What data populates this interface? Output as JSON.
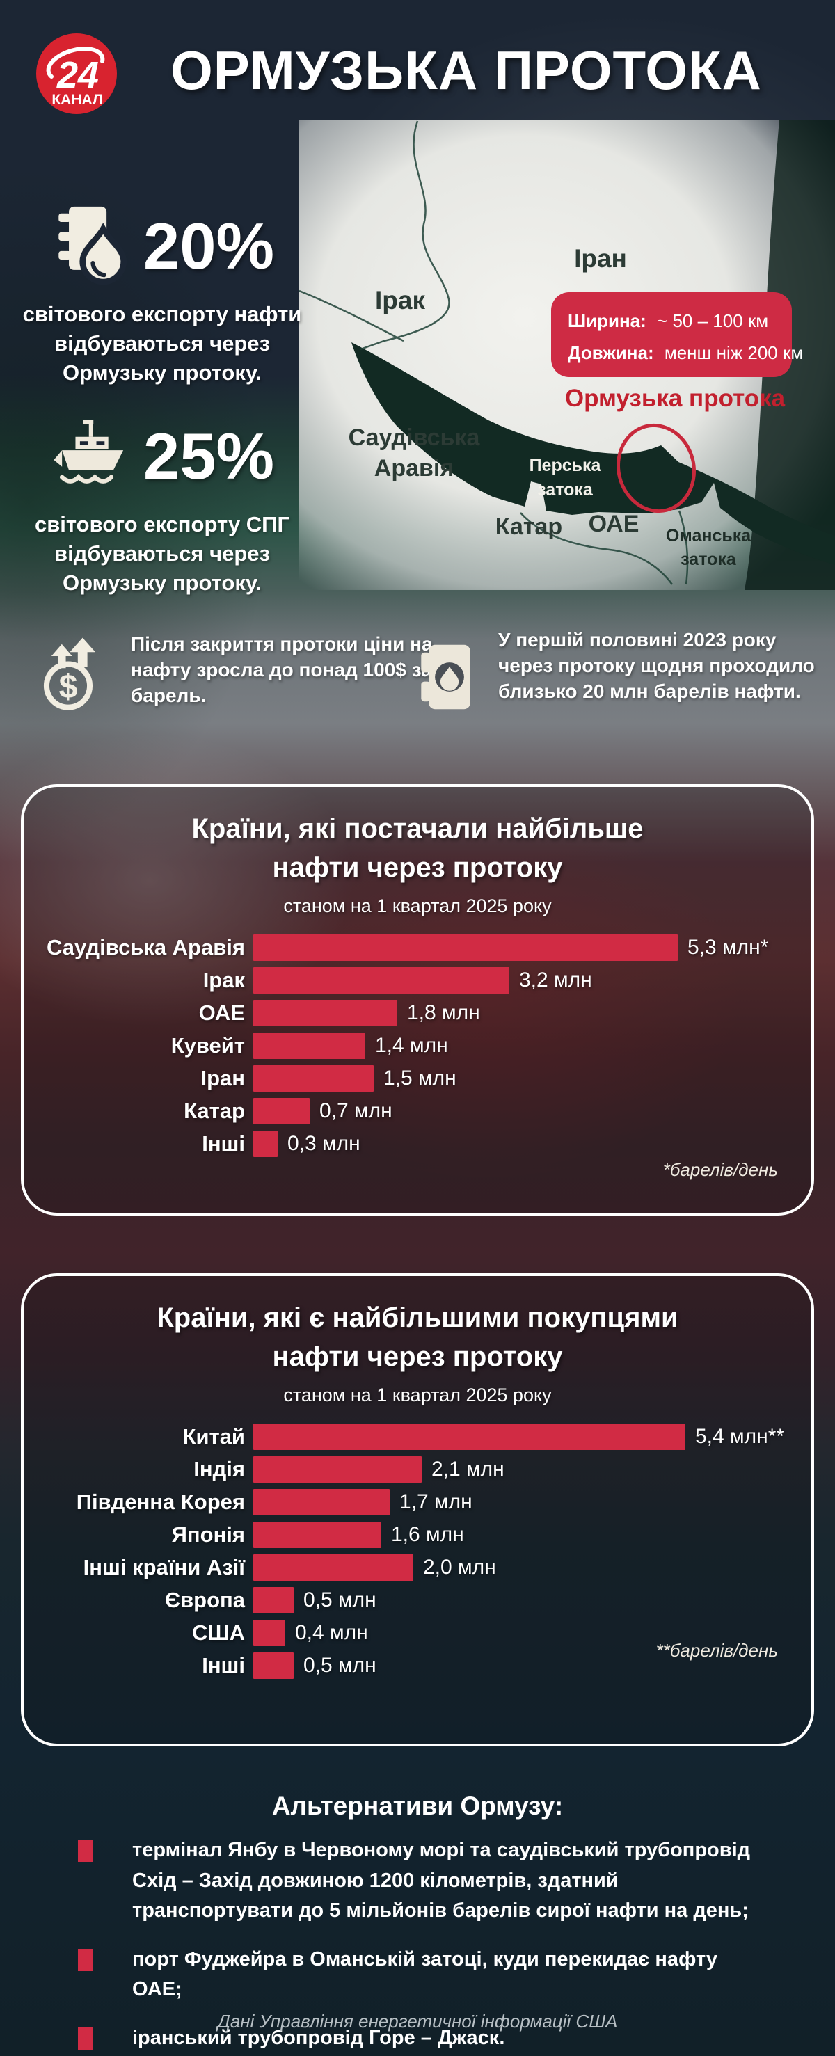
{
  "header": {
    "logo": {
      "number": "24",
      "word": "КАНАЛ"
    },
    "title": "ОРМУЗЬКА ПРОТОКА"
  },
  "map": {
    "labels": {
      "iran": "Іран",
      "iraq": "Ірак",
      "saudi_line1": "Саудівська",
      "saudi_line2": "Аравія",
      "qatar": "Катар",
      "uae": "ОАЕ",
      "persian_gulf_line1": "Перська",
      "persian_gulf_line2": "затока",
      "oman_gulf_line1": "Оманська",
      "oman_gulf_line2": "затока"
    },
    "badge": {
      "width_label": "Ширина:",
      "width_value": "~ 50 – 100 км",
      "length_label": "Довжина:",
      "length_value": "менш ніж 200 км"
    },
    "strait_label": "Ормузька протока"
  },
  "stats": [
    {
      "icon": "oil-barrel-drop",
      "value": "20%",
      "text": "світового експорту нафти відбуваються через Ормузьку протоку."
    },
    {
      "icon": "cargo-ship",
      "value": "25%",
      "text": "світового експорту СПГ відбуваються через Ормузьку протоку."
    }
  ],
  "facts": [
    {
      "icon": "price-rise-dollar",
      "text": "Після закриття протоки ціни на нафту зросла до понад 100$ за барель."
    },
    {
      "icon": "oil-barrel",
      "text": "У першій половині 2023 року через протоку щодня проходило близько 20 млн барелів нафти."
    }
  ],
  "chart_data": [
    {
      "type": "bar",
      "orientation": "horizontal",
      "title": "Країни, які постачали найбільше нафти через протоку",
      "subtitle": "станом на 1 квартал 2025 року",
      "categories": [
        "Саудівська Аравія",
        "Ірак",
        "ОАЕ",
        "Кувейт",
        "Іран",
        "Катар",
        "Інші"
      ],
      "values": [
        5.3,
        3.2,
        1.8,
        1.4,
        1.5,
        0.7,
        0.3
      ],
      "value_labels": [
        "5,3 млн*",
        "3,2 млн",
        "1,8 млн",
        "1,4 млн",
        "1,5 млн",
        "0,7 млн",
        "0,3 млн"
      ],
      "unit": "млн барелів/день",
      "footnote": "*барелів/день",
      "xlim": [
        0,
        5.5
      ],
      "grid": false,
      "legend": false
    },
    {
      "type": "bar",
      "orientation": "horizontal",
      "title": "Країни, які є найбільшими покупцями нафти через протоку",
      "subtitle": "станом на 1 квартал 2025 року",
      "categories": [
        "Китай",
        "Індія",
        "Південна Корея",
        "Японія",
        "Інші країни Азії",
        "Європа",
        "США",
        "Інші"
      ],
      "values": [
        5.4,
        2.1,
        1.7,
        1.6,
        2.0,
        0.5,
        0.4,
        0.5
      ],
      "value_labels": [
        "5,4 млн**",
        "2,1 млн",
        "1,7 млн",
        "1,6 млн",
        "2,0 млн",
        "0,5 млн",
        "0,4 млн",
        "0,5 млн"
      ],
      "unit": "млн барелів/день",
      "footnote": "**барелів/день",
      "xlim": [
        0,
        5.5
      ],
      "grid": false,
      "legend": false
    }
  ],
  "alternatives": {
    "title": "Альтернативи Ормузу:",
    "items": [
      "термінал Янбу в Червоному морі та саудівський трубопровід Схід – Захід довжиною 1200 кілометрів, здатний транспортувати до 5 мільйонів барелів сирої нафти на день;",
      "порт Фуджейра в Оманській затоці, куди перекидає нафту ОАЕ;",
      "іранський трубопровід Горе – Джаск."
    ]
  },
  "footer": {
    "source": "Дані Управління енергетичної інформації США"
  },
  "colors": {
    "accent_red": "#d12b44",
    "badge_red": "#ce2b44",
    "logo_red": "#d8232f",
    "strait_text_red": "#c2202e",
    "panel_border": "#ffffff",
    "background_navy": "#1c2634"
  }
}
